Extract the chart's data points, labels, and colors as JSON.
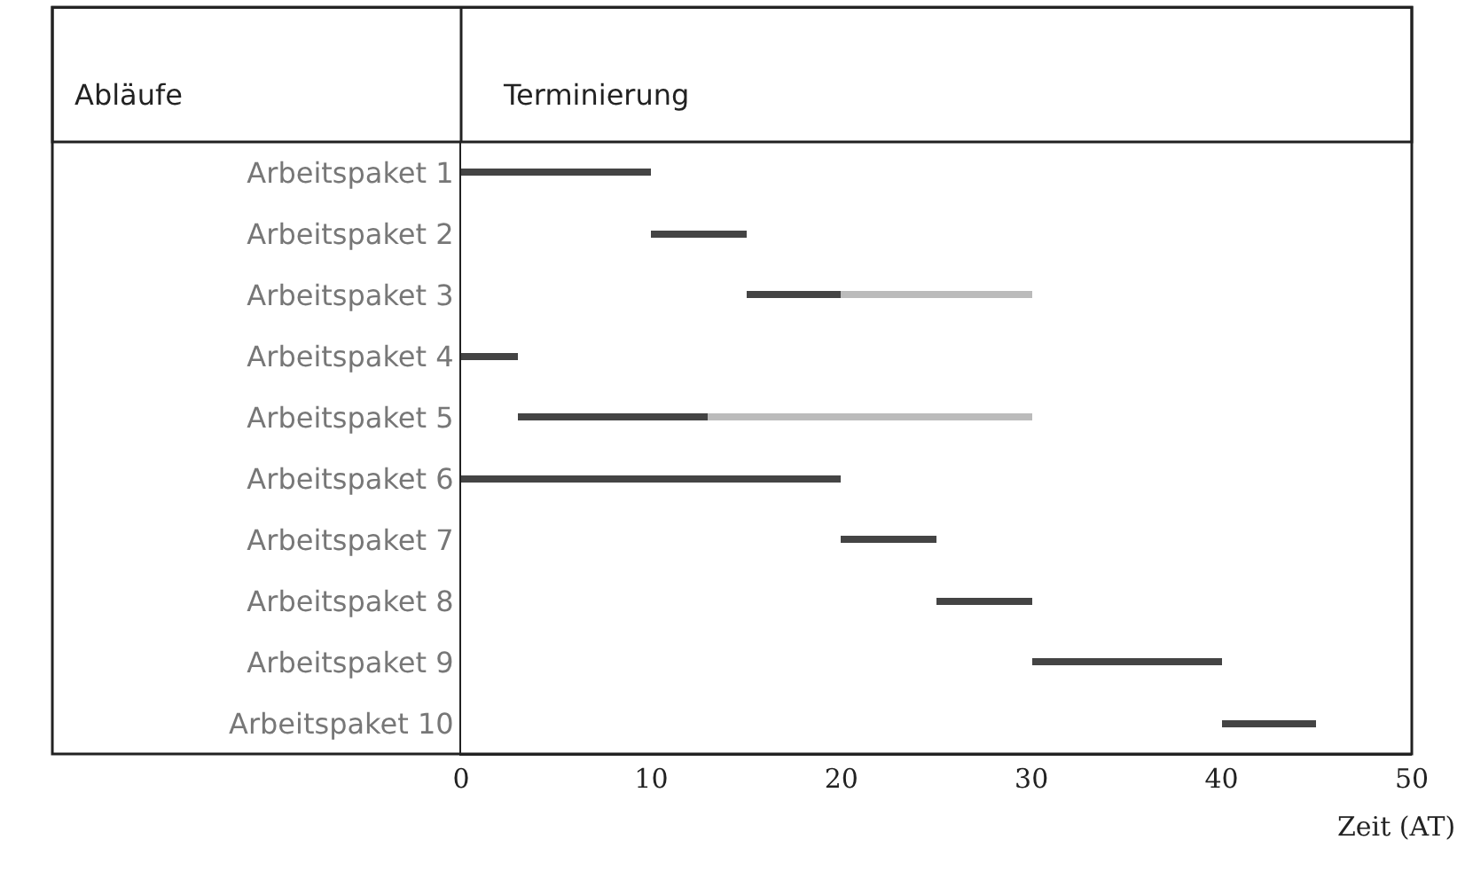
{
  "chart_data": {
    "type": "bar",
    "orientation": "horizontal",
    "title": "Terminierung",
    "ylabel": "Abläufe",
    "xlabel": "Zeit (AT)",
    "categories": [
      "Arbeitspaket 1",
      "Arbeitspaket 2",
      "Arbeitspaket 3",
      "Arbeitspaket 4",
      "Arbeitspaket 5",
      "Arbeitspaket 6",
      "Arbeitspaket 7",
      "Arbeitspaket 8",
      "Arbeitspaket 9",
      "Arbeitspaket 10"
    ],
    "series": [
      {
        "color": "#444444",
        "base": [
          0,
          10,
          15,
          0,
          3,
          0,
          20,
          25,
          30,
          40
        ],
        "values": [
          10,
          5,
          5,
          3,
          10,
          20,
          5,
          5,
          10,
          5
        ]
      },
      {
        "color": "#bbbbbb",
        "base": [
          null,
          null,
          20,
          null,
          13,
          null,
          null,
          null,
          null,
          null
        ],
        "values": [
          null,
          null,
          10,
          null,
          17,
          null,
          null,
          null,
          null,
          null
        ]
      }
    ],
    "xlim": [
      0,
      50
    ],
    "xticks": [
      0,
      10,
      20,
      30,
      40,
      50
    ]
  }
}
